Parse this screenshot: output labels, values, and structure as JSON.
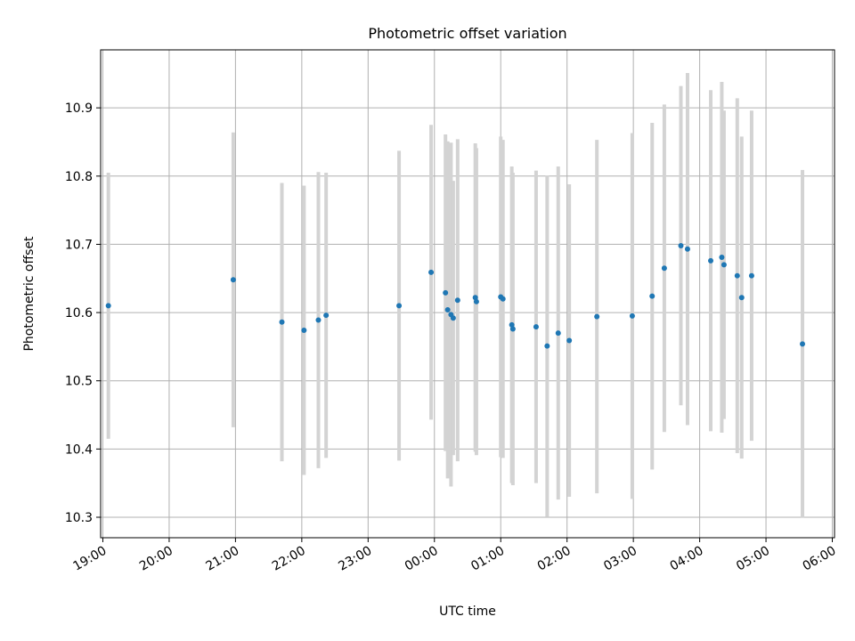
{
  "chart_data": {
    "type": "scatter",
    "title": "Photometric offset variation",
    "xlabel": "UTC time",
    "ylabel": "Photometric offset",
    "x_unit": "UTC (night spanning two dates)",
    "xlim": [
      "18:58",
      "06:02"
    ],
    "ylim": [
      10.27,
      10.985
    ],
    "grid": true,
    "x_tick_labels": [
      "19:00",
      "20:00",
      "21:00",
      "22:00",
      "23:00",
      "00:00",
      "01:00",
      "02:00",
      "03:00",
      "04:00",
      "05:00",
      "06:00"
    ],
    "y_tick_labels": [
      "10.3",
      "10.4",
      "10.5",
      "10.6",
      "10.7",
      "10.8",
      "10.9"
    ],
    "colors": {
      "points": "#1f77b4",
      "errorbars": "#d3d3d3",
      "grid": "#b0b0b0"
    },
    "points": [
      {
        "x": "19:05",
        "y": 10.61,
        "err": 0.195
      },
      {
        "x": "20:58",
        "y": 10.648,
        "err": 0.216
      },
      {
        "x": "21:42",
        "y": 10.586,
        "err": 0.204
      },
      {
        "x": "22:02",
        "y": 10.574,
        "err": 0.212
      },
      {
        "x": "22:15",
        "y": 10.589,
        "err": 0.217
      },
      {
        "x": "22:22",
        "y": 10.596,
        "err": 0.209
      },
      {
        "x": "23:28",
        "y": 10.61,
        "err": 0.227
      },
      {
        "x": "23:57",
        "y": 10.659,
        "err": 0.216
      },
      {
        "x": "00:10",
        "y": 10.629,
        "err": 0.232
      },
      {
        "x": "00:12",
        "y": 10.604,
        "err": 0.247
      },
      {
        "x": "00:15",
        "y": 10.597,
        "err": 0.252
      },
      {
        "x": "00:17",
        "y": 10.592,
        "err": 0.201
      },
      {
        "x": "00:21",
        "y": 10.618,
        "err": 0.236
      },
      {
        "x": "00:37",
        "y": 10.622,
        "err": 0.226
      },
      {
        "x": "00:38",
        "y": 10.616,
        "err": 0.225
      },
      {
        "x": "01:00",
        "y": 10.623,
        "err": 0.235
      },
      {
        "x": "01:02",
        "y": 10.62,
        "err": 0.233
      },
      {
        "x": "01:10",
        "y": 10.582,
        "err": 0.232
      },
      {
        "x": "01:11",
        "y": 10.576,
        "err": 0.229
      },
      {
        "x": "01:32",
        "y": 10.579,
        "err": 0.229
      },
      {
        "x": "01:42",
        "y": 10.551,
        "err": 0.25
      },
      {
        "x": "01:52",
        "y": 10.57,
        "err": 0.244
      },
      {
        "x": "02:02",
        "y": 10.559,
        "err": 0.229
      },
      {
        "x": "02:27",
        "y": 10.594,
        "err": 0.259
      },
      {
        "x": "02:59",
        "y": 10.595,
        "err": 0.268
      },
      {
        "x": "03:17",
        "y": 10.624,
        "err": 0.254
      },
      {
        "x": "03:28",
        "y": 10.665,
        "err": 0.24
      },
      {
        "x": "03:43",
        "y": 10.698,
        "err": 0.234
      },
      {
        "x": "03:49",
        "y": 10.693,
        "err": 0.258
      },
      {
        "x": "04:10",
        "y": 10.676,
        "err": 0.25
      },
      {
        "x": "04:20",
        "y": 10.681,
        "err": 0.257
      },
      {
        "x": "04:22",
        "y": 10.67,
        "err": 0.226
      },
      {
        "x": "04:34",
        "y": 10.654,
        "err": 0.26
      },
      {
        "x": "04:38",
        "y": 10.622,
        "err": 0.236
      },
      {
        "x": "04:47",
        "y": 10.654,
        "err": 0.242
      },
      {
        "x": "05:33",
        "y": 10.554,
        "err": 0.255
      }
    ]
  }
}
